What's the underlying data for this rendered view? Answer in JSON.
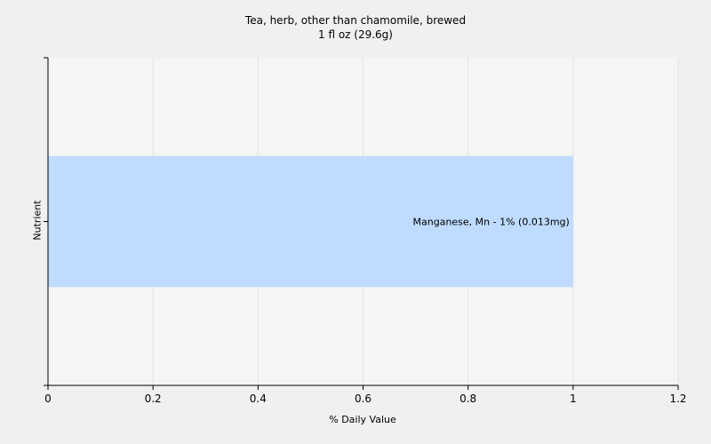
{
  "chart_data": {
    "type": "bar",
    "orientation": "horizontal",
    "title": "Tea, herb, other than chamomile, brewed",
    "subtitle": "1 fl oz (29.6g)",
    "xlabel": "% Daily Value",
    "ylabel": "Nutrient",
    "xlim": [
      0,
      1.2
    ],
    "xticks": [
      "0",
      "0.2",
      "0.4",
      "0.6",
      "0.8",
      "1",
      "1.2"
    ],
    "grid": true,
    "categories": [
      "Manganese, Mn"
    ],
    "values": [
      1
    ],
    "data_labels": [
      "Manganese, Mn - 1% (0.013mg)"
    ],
    "colors": {
      "bar": "#bfdbff",
      "plot_bg": "#f5f5f5",
      "grid": "#e3e3e3",
      "axis": "#000000"
    }
  }
}
